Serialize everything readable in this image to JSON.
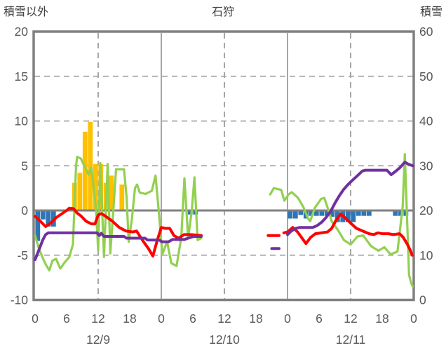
{
  "header": {
    "left_axis_title": "積雪以外",
    "chart_title": "石狩",
    "right_axis_title": "積雪"
  },
  "chart_data": {
    "type": "composite",
    "title": "石狩",
    "station": "石狩",
    "left_axis": {
      "label": "積雪以外",
      "min": -10,
      "max": 20,
      "ticks": [
        20,
        15,
        10,
        5,
        0,
        -5,
        -10
      ]
    },
    "right_axis": {
      "label": "積雪",
      "min": 0,
      "max": 60,
      "ticks": [
        60,
        50,
        40,
        30,
        20,
        10,
        0
      ]
    },
    "x_axis": {
      "unit": "hour",
      "total_hours": 72,
      "tick_interval_hours": 6,
      "hour_tick_labels": [
        "0",
        "6",
        "12",
        "18",
        "0",
        "6",
        "12",
        "18",
        "0",
        "6",
        "12",
        "18",
        "0"
      ],
      "day_labels": [
        "12/9",
        "12/10",
        "12/11"
      ],
      "day_label_hours": [
        12,
        36,
        60
      ],
      "solid_gridline_hours": [
        24,
        48
      ],
      "dashed_gridline_hours": [
        12,
        36,
        60
      ]
    },
    "grid": {
      "dashed_left_values": [
        15,
        10,
        5,
        -5
      ],
      "zero_line_value": 0
    },
    "colors": {
      "orange_bars": "#FFC000",
      "blue_bars": "#2E75B6",
      "red_line": "#FF0000",
      "purple_line": "#7030A0",
      "green_line": "#92D050",
      "frame": "#808080",
      "gridline": "#A6A6A6",
      "text": "#595959"
    },
    "series": [
      {
        "id": "orange-bars",
        "kind": "bar",
        "axis": "left",
        "color_key": "orange_bars",
        "points": [
          [
            7,
            3.1
          ],
          [
            8,
            4.2
          ],
          [
            9,
            8.8
          ],
          [
            10,
            9.9
          ],
          [
            11,
            5.2
          ],
          [
            12,
            5.2
          ],
          [
            13,
            3.1
          ],
          [
            14,
            3.9
          ],
          [
            16,
            2.9
          ]
        ]
      },
      {
        "id": "blue-bars",
        "kind": "bar",
        "axis": "left",
        "color_key": "blue_bars",
        "points": [
          [
            0,
            -3.4
          ],
          [
            1,
            -1.0
          ],
          [
            2,
            -1.8
          ],
          [
            3,
            -1.8
          ],
          [
            29,
            -0.45
          ],
          [
            30,
            -0.45
          ],
          [
            48,
            -0.9
          ],
          [
            49,
            -0.9
          ],
          [
            50,
            -0.5
          ],
          [
            51,
            -0.9
          ],
          [
            52,
            -0.6
          ],
          [
            53,
            -0.6
          ],
          [
            54,
            -0.6
          ],
          [
            55,
            -0.6
          ],
          [
            56,
            -0.7
          ],
          [
            57,
            -1.3
          ],
          [
            58,
            -1.3
          ],
          [
            59,
            -1.3
          ],
          [
            60,
            -1.3
          ],
          [
            61,
            -0.6
          ],
          [
            62,
            -0.6
          ],
          [
            63,
            -0.6
          ],
          [
            68,
            -0.6
          ],
          [
            69,
            -0.6
          ],
          [
            70,
            -0.6
          ]
        ]
      },
      {
        "id": "green-line",
        "kind": "line",
        "axis": "left",
        "color_key": "green_line",
        "width": 3.2,
        "segments": [
          [
            [
              0,
              -2.8
            ],
            [
              0.7,
              -4.2
            ],
            [
              1.3,
              -5.1
            ],
            [
              2,
              -6.0
            ],
            [
              2.7,
              -6.7
            ],
            [
              3.3,
              -5.6
            ],
            [
              4,
              -5.4
            ],
            [
              4.8,
              -6.5
            ],
            [
              5.5,
              -5.9
            ],
            [
              6.5,
              -5.2
            ],
            [
              7.2,
              -3.8
            ],
            [
              7.8,
              5.0
            ],
            [
              8,
              6.0
            ],
            [
              8.7,
              5.8
            ],
            [
              9.7,
              4.6
            ],
            [
              10.2,
              4.0
            ],
            [
              10.7,
              4.8
            ],
            [
              11.6,
              0
            ],
            [
              12,
              -4.5
            ],
            [
              12.4,
              5.3
            ],
            [
              13.1,
              -5.2
            ],
            [
              13.8,
              5.2
            ],
            [
              14.3,
              -4.8
            ],
            [
              15,
              1.0
            ],
            [
              15.4,
              4.6
            ],
            [
              16.9,
              4.6
            ],
            [
              17.4,
              1.5
            ],
            [
              17.8,
              -3.5
            ],
            [
              18.4,
              -1.0
            ],
            [
              19,
              2.5
            ],
            [
              19.4,
              2.9
            ],
            [
              19.9,
              2.0
            ],
            [
              21,
              1.85
            ],
            [
              22.2,
              2.2
            ],
            [
              22.9,
              3.9
            ],
            [
              23.5,
              0
            ],
            [
              24.2,
              -4.9
            ],
            [
              25.1,
              -3.5
            ],
            [
              25.9,
              -5.9
            ],
            [
              26.9,
              -6.2
            ],
            [
              27.8,
              -3.0
            ],
            [
              28.4,
              3.6
            ],
            [
              29.1,
              -3.1
            ],
            [
              29.8,
              0
            ],
            [
              30.3,
              3.7
            ],
            [
              30.9,
              -3.3
            ],
            [
              31.6,
              -3.1
            ]
          ],
          [
            [
              44.7,
              1.8
            ],
            [
              45.4,
              2.5
            ],
            [
              46.1,
              2.4
            ],
            [
              46.8,
              2.3
            ],
            [
              47.4,
              1.1
            ],
            [
              48.2,
              1.8
            ],
            [
              48.8,
              2.05
            ],
            [
              50,
              1.4
            ],
            [
              51,
              0.4
            ],
            [
              51.9,
              -0.9
            ],
            [
              52.3,
              -1.2
            ],
            [
              53.2,
              0.3
            ],
            [
              54.4,
              1.3
            ],
            [
              55,
              1.4
            ],
            [
              55.8,
              0
            ],
            [
              56.4,
              -1.2
            ],
            [
              57.7,
              -2.3
            ],
            [
              58.7,
              -3.3
            ],
            [
              60,
              -3.8
            ],
            [
              61.3,
              -2.9
            ],
            [
              62.4,
              -2.8
            ],
            [
              63.9,
              -4.0
            ],
            [
              65.3,
              -4.5
            ],
            [
              66.4,
              -4.1
            ],
            [
              67.6,
              -4.9
            ],
            [
              68.9,
              -4.6
            ],
            [
              69.9,
              0.5
            ],
            [
              70.3,
              6.3
            ],
            [
              71.1,
              -7.2
            ],
            [
              71.5,
              -8.1
            ],
            [
              71.8,
              -8.5
            ]
          ]
        ]
      },
      {
        "id": "red-line",
        "kind": "line",
        "axis": "left",
        "color_key": "red_line",
        "width": 4,
        "segments": [
          [
            [
              0,
              -0.65
            ],
            [
              1,
              -1.2
            ],
            [
              2,
              -1.8
            ],
            [
              3,
              -1.4
            ],
            [
              4,
              -0.8
            ],
            [
              5,
              -0.4
            ],
            [
              6,
              0
            ],
            [
              6.5,
              0.25
            ],
            [
              7.3,
              0.2
            ],
            [
              8,
              -0.3
            ],
            [
              8.7,
              -0.6
            ],
            [
              9.7,
              -1.2
            ],
            [
              10.7,
              -1.5
            ],
            [
              11.4,
              -1.5
            ],
            [
              12,
              -0.5
            ],
            [
              12.6,
              -0.35
            ],
            [
              13.3,
              -0.6
            ],
            [
              14,
              -0.9
            ],
            [
              14.7,
              -1.2
            ],
            [
              16,
              -1.9
            ],
            [
              17.3,
              -2.3
            ],
            [
              18.6,
              -2.4
            ],
            [
              19.3,
              -2.3
            ],
            [
              20.4,
              -3.3
            ],
            [
              21.6,
              -4.3
            ],
            [
              22.4,
              -5.1
            ],
            [
              23.2,
              -3.4
            ],
            [
              24,
              -1.9
            ],
            [
              24.7,
              -2.0
            ],
            [
              25.6,
              -2.0
            ],
            [
              26.4,
              -2.8
            ],
            [
              27.3,
              -3.1
            ],
            [
              28.3,
              -2.7
            ],
            [
              29.7,
              -2.7
            ],
            [
              31.6,
              -2.8
            ]
          ],
          [
            [
              44.3,
              -2.8
            ],
            [
              46.4,
              -2.8
            ]
          ],
          [
            [
              47.3,
              -2.5
            ],
            [
              48,
              -2.4
            ],
            [
              49,
              -1.9
            ],
            [
              49.9,
              -2.4
            ],
            [
              51.5,
              -3.7
            ],
            [
              52.4,
              -3.0
            ],
            [
              53.3,
              -2.6
            ],
            [
              55.6,
              -2.4
            ],
            [
              56.4,
              -2.0
            ],
            [
              57.3,
              -1.0
            ],
            [
              58.1,
              -0.4
            ],
            [
              58.9,
              -0.8
            ],
            [
              60,
              -1.4
            ],
            [
              61.1,
              -2.0
            ],
            [
              62.7,
              -2.4
            ],
            [
              63.5,
              -2.6
            ],
            [
              64.4,
              -2.7
            ],
            [
              65.2,
              -2.5
            ],
            [
              66,
              -2.6
            ],
            [
              67.2,
              -2.6
            ],
            [
              68.1,
              -2.7
            ],
            [
              69.3,
              -2.6
            ],
            [
              70,
              -3.0
            ],
            [
              70.8,
              -3.8
            ],
            [
              71.3,
              -4.4
            ],
            [
              71.7,
              -5.0
            ]
          ]
        ]
      },
      {
        "id": "purple-line",
        "kind": "line",
        "axis": "right",
        "color_key": "purple_line",
        "width": 4,
        "segments": [
          [
            [
              0,
              9
            ],
            [
              0.5,
              10.5
            ],
            [
              1,
              12
            ],
            [
              1.5,
              13.5
            ],
            [
              2,
              14.6
            ],
            [
              2.5,
              15
            ],
            [
              11.8,
              15
            ],
            [
              12.2,
              14.4
            ],
            [
              12.6,
              14.9
            ],
            [
              13.1,
              14.2
            ],
            [
              16.9,
              14.2
            ],
            [
              17.4,
              13.8
            ],
            [
              20.9,
              13.8
            ],
            [
              21.4,
              13.4
            ],
            [
              23.6,
              13.4
            ],
            [
              24.1,
              13
            ],
            [
              25.4,
              13
            ],
            [
              26.1,
              13.5
            ],
            [
              28.4,
              13.5
            ],
            [
              29.1,
              13.8
            ],
            [
              30.2,
              14.2
            ],
            [
              31.6,
              14.2
            ]
          ],
          [
            [
              45,
              11.5
            ],
            [
              46.4,
              11.5
            ]
          ],
          [
            [
              48,
              14.6
            ],
            [
              48.7,
              15.4
            ],
            [
              49.6,
              16
            ],
            [
              50.3,
              16.2
            ],
            [
              52.8,
              16.2
            ],
            [
              53.6,
              16.6
            ],
            [
              54.5,
              17.4
            ],
            [
              55.3,
              18.4
            ],
            [
              56.2,
              19.8
            ],
            [
              57,
              21.6
            ],
            [
              57.8,
              23.2
            ],
            [
              58.6,
              24.6
            ],
            [
              59.5,
              25.8
            ],
            [
              60.4,
              26.8
            ],
            [
              61.3,
              27.8
            ],
            [
              62.2,
              28.8
            ],
            [
              62.8,
              29
            ],
            [
              66.9,
              29
            ],
            [
              67.7,
              28
            ],
            [
              68.6,
              28.8
            ],
            [
              69.4,
              29.6
            ],
            [
              70.3,
              30.8
            ],
            [
              70.9,
              30.4
            ],
            [
              71.8,
              30
            ]
          ]
        ]
      }
    ]
  }
}
